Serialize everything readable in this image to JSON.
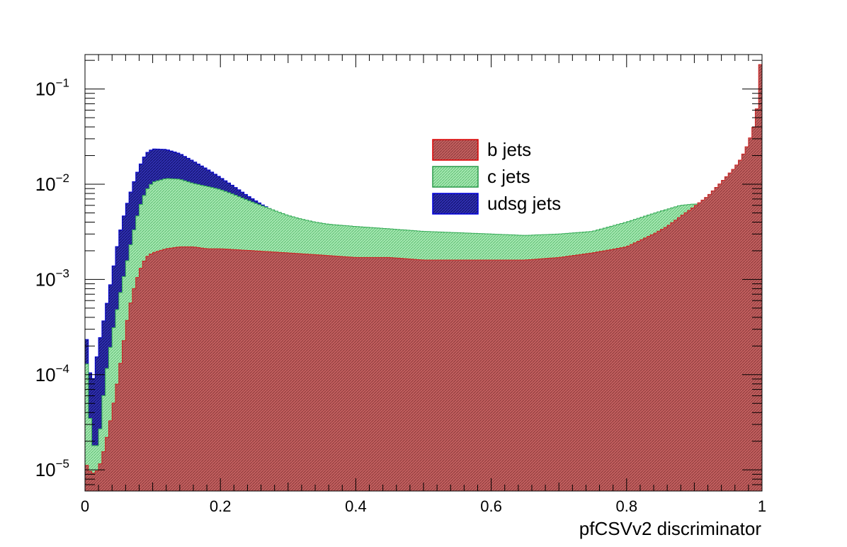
{
  "chart_data": {
    "type": "histogram",
    "title": "",
    "xlabel": "pfCSVv2 discriminator",
    "ylabel": "",
    "xlim": [
      0,
      1
    ],
    "ylim": [
      6e-06,
      0.23
    ],
    "yscale": "log",
    "xticks": [
      {
        "value": 0,
        "label": "0"
      },
      {
        "value": 0.2,
        "label": "0.2"
      },
      {
        "value": 0.4,
        "label": "0.4"
      },
      {
        "value": 0.6,
        "label": "0.6"
      },
      {
        "value": 0.8,
        "label": "0.8"
      },
      {
        "value": 1,
        "label": "1"
      }
    ],
    "yticks": [
      {
        "value": 0.1,
        "base": "10",
        "exp": "−1"
      },
      {
        "value": 0.01,
        "base": "10",
        "exp": "−2"
      },
      {
        "value": 0.001,
        "base": "10",
        "exp": "−3"
      },
      {
        "value": 0.0001,
        "base": "10",
        "exp": "−4"
      },
      {
        "value": 1e-05,
        "base": "10",
        "exp": "−5"
      }
    ],
    "legend_position": "top-center",
    "grid": false,
    "series": [
      {
        "name": "udsg jets",
        "color": "#0000cc",
        "fill": "#2a2aa0",
        "stacked_on_top": false,
        "points": [
          [
            0.0,
            0.00035
          ],
          [
            0.01,
            7e-05
          ],
          [
            0.02,
            0.0002
          ],
          [
            0.03,
            0.00045
          ],
          [
            0.04,
            0.0011
          ],
          [
            0.05,
            0.0028
          ],
          [
            0.06,
            0.0055
          ],
          [
            0.07,
            0.0095
          ],
          [
            0.08,
            0.015
          ],
          [
            0.09,
            0.021
          ],
          [
            0.1,
            0.0235
          ],
          [
            0.12,
            0.0232
          ],
          [
            0.14,
            0.021
          ],
          [
            0.16,
            0.0175
          ],
          [
            0.18,
            0.0145
          ],
          [
            0.2,
            0.0118
          ],
          [
            0.22,
            0.0095
          ],
          [
            0.24,
            0.0076
          ],
          [
            0.26,
            0.0062
          ],
          [
            0.28,
            0.0052
          ],
          [
            0.3,
            0.0046
          ],
          [
            0.32,
            0.0042
          ],
          [
            0.34,
            0.004
          ],
          [
            0.36,
            0.0037
          ],
          [
            0.38,
            0.0035
          ],
          [
            0.4,
            0.0033
          ],
          [
            0.42,
            0.0031
          ],
          [
            0.44,
            0.003
          ],
          [
            0.46,
            0.0028
          ],
          [
            0.5,
            0.0026
          ],
          [
            0.54,
            0.0024
          ],
          [
            0.58,
            0.0022
          ],
          [
            0.62,
            0.002
          ],
          [
            0.66,
            0.0019
          ],
          [
            0.7,
            0.0017
          ],
          [
            0.74,
            0.0016
          ],
          [
            0.78,
            0.0014
          ],
          [
            0.8,
            0.0012
          ],
          [
            0.82,
            0.0011
          ],
          [
            0.84,
            0.0009
          ],
          [
            0.86,
            0.0007
          ],
          [
            0.88,
            0.0005
          ],
          [
            0.9,
            0.00035
          ],
          [
            0.92,
            0.00025
          ],
          [
            0.94,
            0.00015
          ],
          [
            0.96,
            8e-05
          ],
          [
            0.98,
            3e-05
          ],
          [
            0.995,
            1.2e-05
          ]
        ]
      },
      {
        "name": "c jets",
        "color": "#33aa55",
        "fill": "#99e0a8",
        "points": [
          [
            0.0,
            0.00025
          ],
          [
            0.01,
            1.8e-05
          ],
          [
            0.02,
            1.8e-05
          ],
          [
            0.03,
            9e-05
          ],
          [
            0.04,
            0.00025
          ],
          [
            0.05,
            0.0006
          ],
          [
            0.06,
            0.0013
          ],
          [
            0.07,
            0.0028
          ],
          [
            0.08,
            0.0055
          ],
          [
            0.09,
            0.0085
          ],
          [
            0.1,
            0.0105
          ],
          [
            0.12,
            0.0115
          ],
          [
            0.14,
            0.0113
          ],
          [
            0.16,
            0.0102
          ],
          [
            0.18,
            0.0095
          ],
          [
            0.2,
            0.0088
          ],
          [
            0.22,
            0.0078
          ],
          [
            0.24,
            0.0068
          ],
          [
            0.26,
            0.006
          ],
          [
            0.28,
            0.0053
          ],
          [
            0.3,
            0.0047
          ],
          [
            0.32,
            0.0043
          ],
          [
            0.34,
            0.004
          ],
          [
            0.36,
            0.0038
          ],
          [
            0.4,
            0.0036
          ],
          [
            0.45,
            0.0034
          ],
          [
            0.5,
            0.0032
          ],
          [
            0.55,
            0.0031
          ],
          [
            0.6,
            0.003
          ],
          [
            0.65,
            0.0029
          ],
          [
            0.7,
            0.003
          ],
          [
            0.75,
            0.0032
          ],
          [
            0.8,
            0.004
          ],
          [
            0.85,
            0.0052
          ],
          [
            0.88,
            0.006
          ],
          [
            0.9,
            0.0062
          ],
          [
            0.92,
            0.0061
          ],
          [
            0.94,
            0.0059
          ],
          [
            0.96,
            0.0056
          ],
          [
            0.98,
            0.0053
          ],
          [
            0.995,
            0.005
          ]
        ]
      },
      {
        "name": "b jets",
        "color": "#cc2222",
        "fill": "#b85a5a",
        "points": [
          [
            0.0,
            1.2e-05
          ],
          [
            0.01,
            9e-06
          ],
          [
            0.02,
            1e-05
          ],
          [
            0.03,
            1.8e-05
          ],
          [
            0.04,
            4e-05
          ],
          [
            0.05,
            0.0001
          ],
          [
            0.06,
            0.0003
          ],
          [
            0.07,
            0.0007
          ],
          [
            0.08,
            0.0012
          ],
          [
            0.09,
            0.0017
          ],
          [
            0.1,
            0.0019
          ],
          [
            0.12,
            0.0021
          ],
          [
            0.14,
            0.0022
          ],
          [
            0.16,
            0.0022
          ],
          [
            0.18,
            0.0021
          ],
          [
            0.2,
            0.0021
          ],
          [
            0.25,
            0.002
          ],
          [
            0.3,
            0.0019
          ],
          [
            0.35,
            0.0018
          ],
          [
            0.4,
            0.0017
          ],
          [
            0.45,
            0.0017
          ],
          [
            0.5,
            0.0016
          ],
          [
            0.55,
            0.0016
          ],
          [
            0.6,
            0.0016
          ],
          [
            0.65,
            0.0016
          ],
          [
            0.7,
            0.0017
          ],
          [
            0.75,
            0.0019
          ],
          [
            0.8,
            0.0022
          ],
          [
            0.84,
            0.003
          ],
          [
            0.86,
            0.0036
          ],
          [
            0.88,
            0.0046
          ],
          [
            0.9,
            0.0058
          ],
          [
            0.92,
            0.0075
          ],
          [
            0.94,
            0.0105
          ],
          [
            0.96,
            0.015
          ],
          [
            0.97,
            0.019
          ],
          [
            0.98,
            0.027
          ],
          [
            0.99,
            0.045
          ],
          [
            0.995,
            0.085
          ],
          [
            0.998,
            0.21
          ]
        ]
      }
    ],
    "legend": [
      {
        "label": "b jets",
        "fill": "#b85a5a",
        "stroke": "#dd0000"
      },
      {
        "label": "c jets",
        "fill": "#99e0a8",
        "stroke": "#2a9a4a"
      },
      {
        "label": "udsg jets",
        "fill": "#2a2aa0",
        "stroke": "#0000dd"
      }
    ]
  }
}
